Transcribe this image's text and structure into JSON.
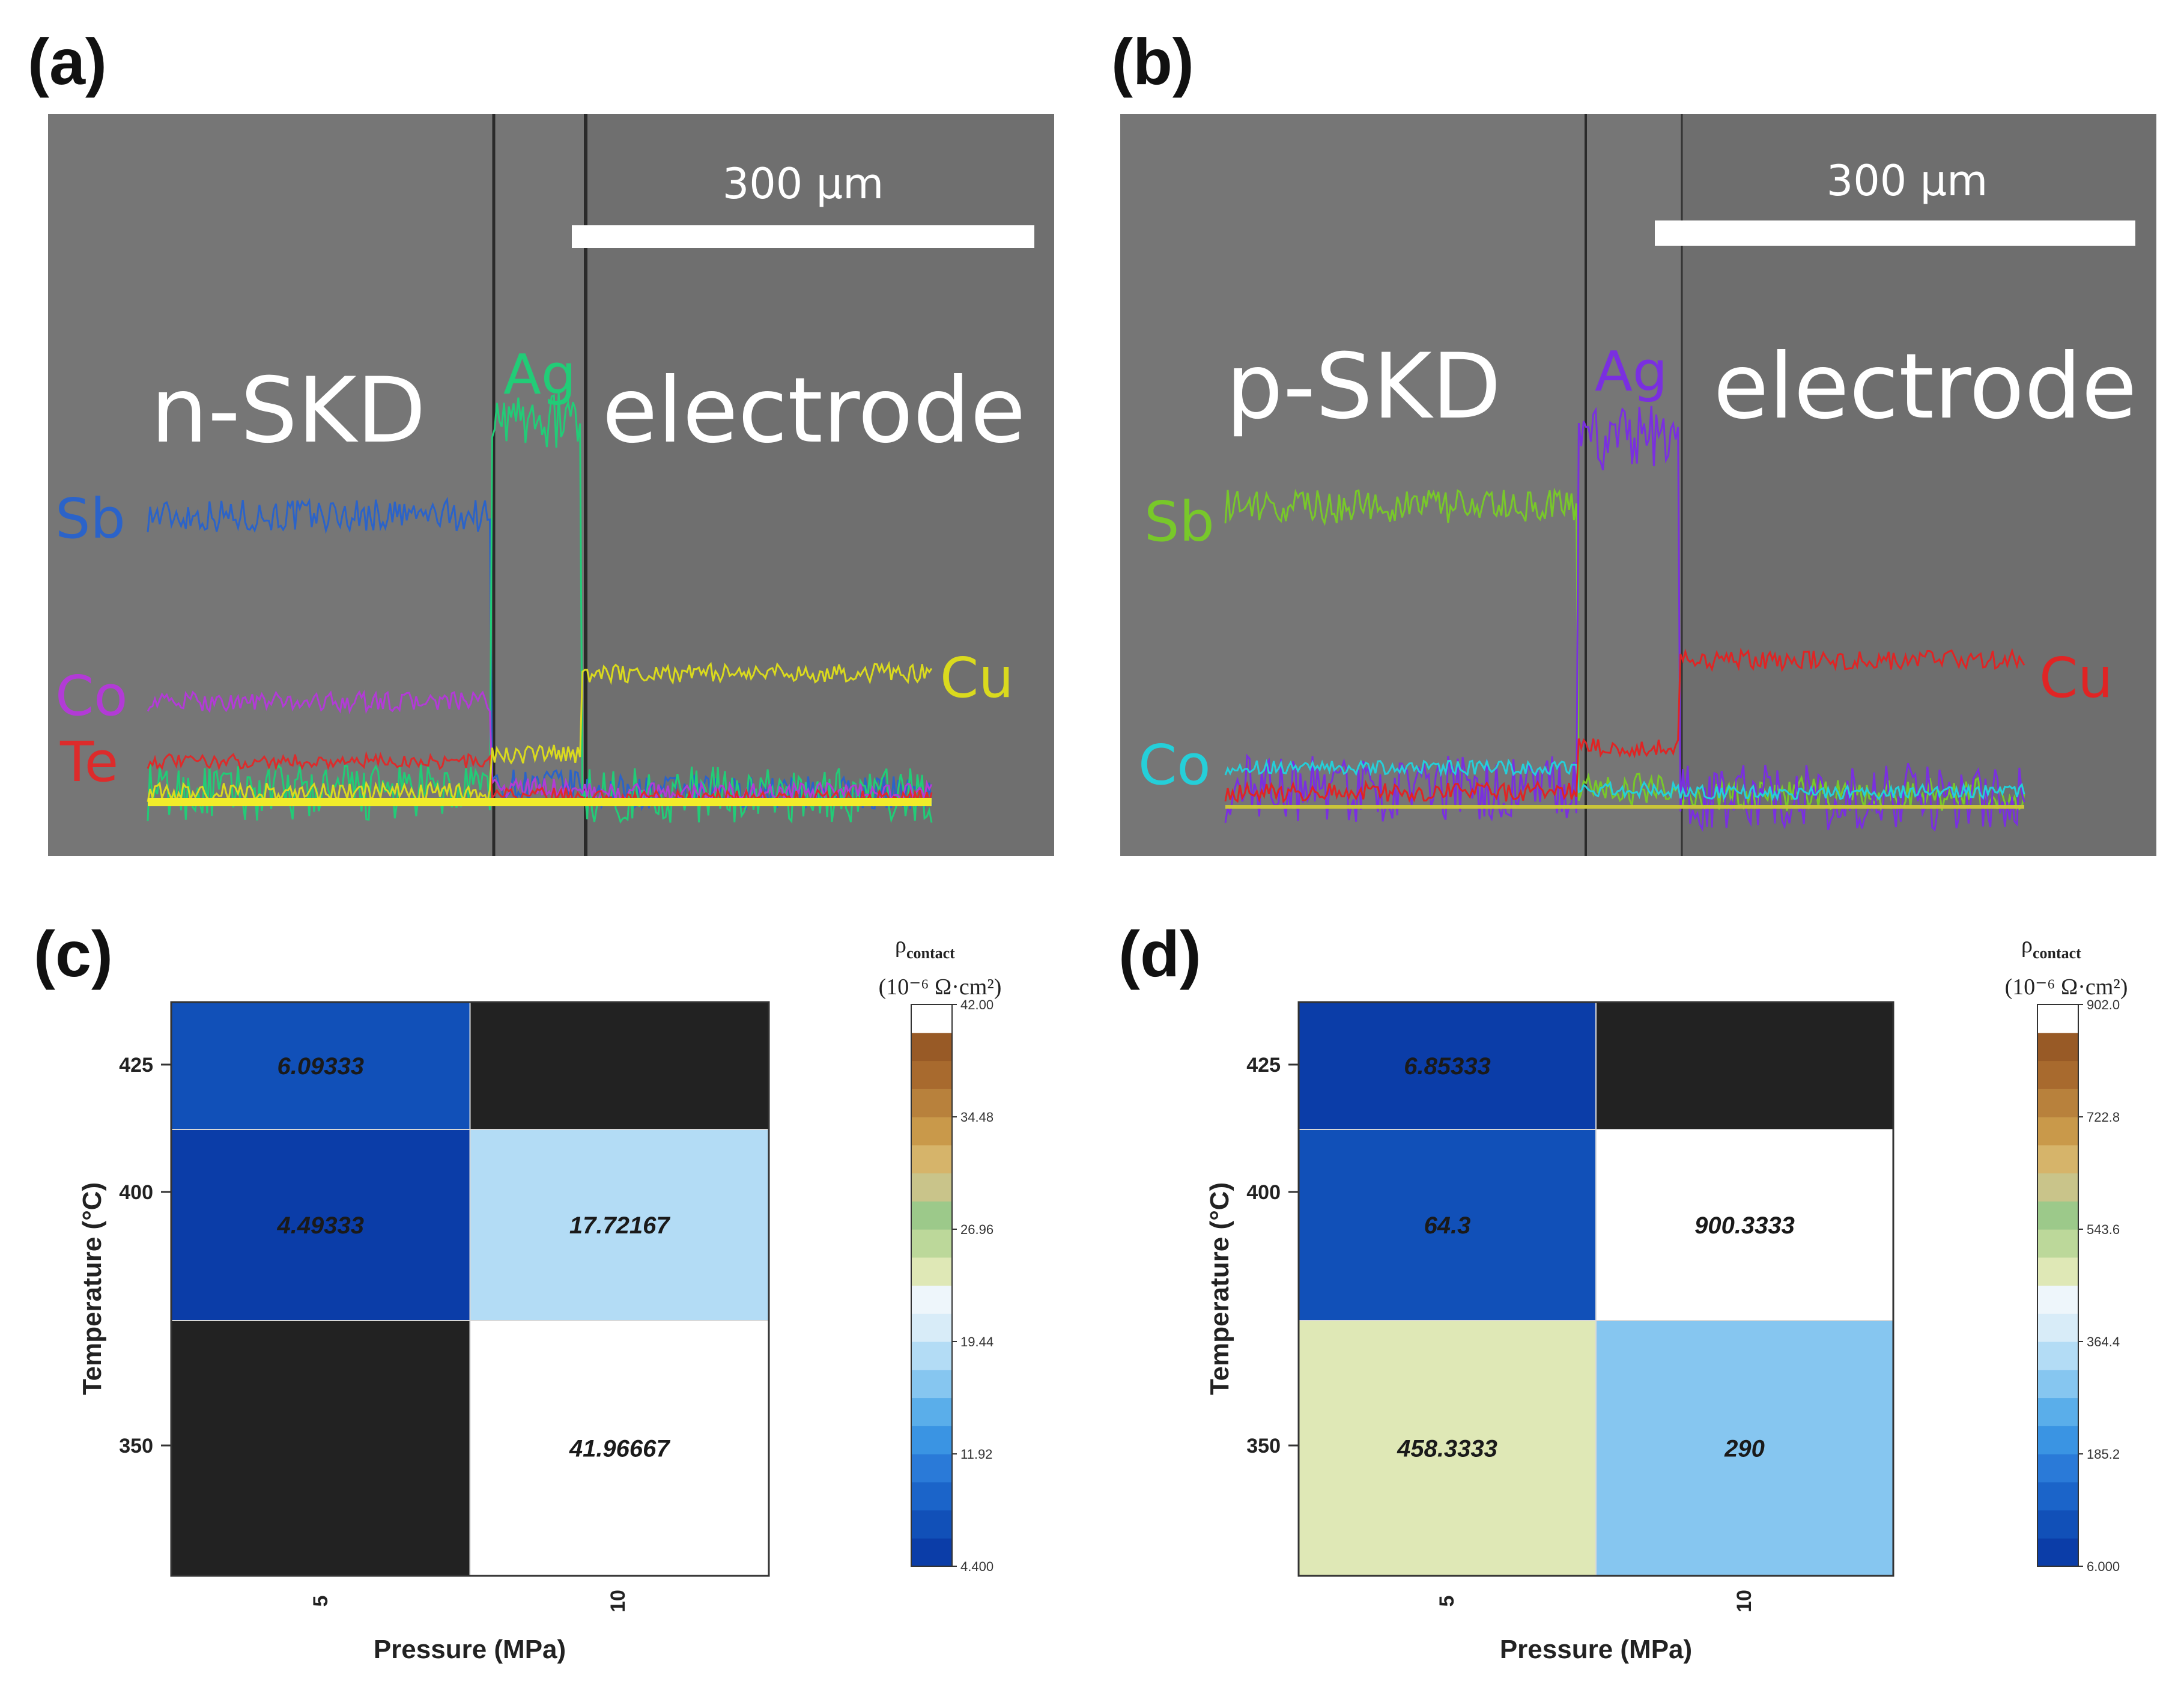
{
  "figure_labels": {
    "a": "(a)",
    "b": "(b)",
    "c": "(c)",
    "d": "(d)"
  },
  "colors": {
    "sem_bg": "#777777",
    "scale_bar": "#ffffff",
    "no_data": "#222222",
    "Sb_n": "#2b63c9",
    "Ag_n": "#22cc77",
    "Co_n": "#b23bd6",
    "Te_n": "#dd2b2b",
    "Cu_n": "#dada1e",
    "Sb_p": "#78c82a",
    "Ag_p": "#7a2fe0",
    "Co_p": "#25cfd9",
    "Cu_p": "#e02424",
    "colormap": [
      "#0b3da8",
      "#1150b8",
      "#1b64c9",
      "#2a7ad8",
      "#3a94e3",
      "#5aaeea",
      "#86c6f0",
      "#b3dcf5",
      "#d8ecf8",
      "#eef6fb",
      "#dfe8b6",
      "#bcd89a",
      "#9cc98a",
      "#c9c48a",
      "#d6b46a",
      "#c9994a",
      "#b8813c",
      "#a86a2e",
      "#985a26",
      "#ffffff"
    ]
  },
  "chart_data": [
    {
      "panel": "(a)",
      "type": "line",
      "title": "",
      "scale_bar": "300 µm",
      "region_left": "n-SKD",
      "region_right": "electrode",
      "xlabel": "",
      "ylabel": "",
      "series": [
        {
          "name": "Sb",
          "label": "Sb",
          "interface": [
            0.33,
            0.98
          ],
          "levels": [
            0.6,
            0.035,
            0.02
          ],
          "noise": 0.035
        },
        {
          "name": "Ag",
          "label": "Ag",
          "interface": [
            0.33,
            0.98
          ],
          "levels": [
            0.02,
            0.8,
            0.015
          ],
          "noise": 0.06
        },
        {
          "name": "Co",
          "label": "Co",
          "interface": [
            0.33,
            0.98
          ],
          "levels": [
            0.21,
            0.03,
            0.02
          ],
          "noise": 0.02
        },
        {
          "name": "Te",
          "label": "Te",
          "interface": [
            0.33,
            0.98
          ],
          "levels": [
            0.085,
            0.015,
            0.01
          ],
          "noise": 0.015
        },
        {
          "name": "Cu",
          "label": "Cu",
          "interface": [
            0.33,
            0.98
          ],
          "levels": [
            0.02,
            0.1,
            0.27
          ],
          "noise": 0.02
        }
      ]
    },
    {
      "panel": "(b)",
      "type": "line",
      "title": "",
      "scale_bar": "300 µm",
      "region_left": "p-SKD",
      "region_right": "electrode",
      "xlabel": "",
      "ylabel": "",
      "series": [
        {
          "name": "Sb",
          "label": "Sb",
          "interface": [
            0.44,
            0.98
          ],
          "levels": [
            0.62,
            0.03,
            0.02
          ],
          "noise": 0.035
        },
        {
          "name": "Ag",
          "label": "Ag",
          "interface": [
            0.44,
            0.98
          ],
          "levels": [
            0.03,
            0.76,
            0.015
          ],
          "noise": 0.07
        },
        {
          "name": "Co",
          "label": "Co",
          "interface": [
            0.44,
            0.98
          ],
          "levels": [
            0.075,
            0.03,
            0.025
          ],
          "noise": 0.015
        },
        {
          "name": "Cu",
          "label": "Cu",
          "interface": [
            0.44,
            0.98
          ],
          "levels": [
            0.025,
            0.12,
            0.3
          ],
          "noise": 0.02
        }
      ]
    },
    {
      "panel": "(c)",
      "type": "heatmap",
      "xlabel": "Pressure (MPa)",
      "ylabel": "Temperature (°C)",
      "x_categories": [
        "5",
        "10"
      ],
      "y_categories": [
        "425",
        "400",
        "350"
      ],
      "values": [
        [
          6.09333,
          null
        ],
        [
          4.49333,
          17.72167
        ],
        [
          null,
          41.96667
        ]
      ],
      "value_labels": [
        [
          "6.09333",
          ""
        ],
        [
          "4.49333",
          "17.72167"
        ],
        [
          "",
          "41.96667"
        ]
      ],
      "colorbar": {
        "title": "ρ",
        "title_sub": "contact",
        "units": "(10⁻⁶ Ω·cm²)",
        "range": [
          4.4,
          42.0
        ],
        "ticks": [
          "42.00",
          "34.48",
          "26.96",
          "19.44",
          "11.92",
          "4.400"
        ]
      }
    },
    {
      "panel": "(d)",
      "type": "heatmap",
      "xlabel": "Pressure (MPa)",
      "ylabel": "Temperature (°C)",
      "x_categories": [
        "5",
        "10"
      ],
      "y_categories": [
        "425",
        "400",
        "350"
      ],
      "values": [
        [
          6.85333,
          null
        ],
        [
          64.3,
          900.3333
        ],
        [
          458.3333,
          290
        ]
      ],
      "value_labels": [
        [
          "6.85333",
          ""
        ],
        [
          "64.3",
          "900.3333"
        ],
        [
          "458.3333",
          "290"
        ]
      ],
      "colorbar": {
        "title": "ρ",
        "title_sub": "contact",
        "units": "(10⁻⁶ Ω·cm²)",
        "range": [
          6.0,
          902.0
        ],
        "ticks": [
          "902.0",
          "722.8",
          "543.6",
          "364.4",
          "185.2",
          "6.000"
        ]
      }
    }
  ]
}
